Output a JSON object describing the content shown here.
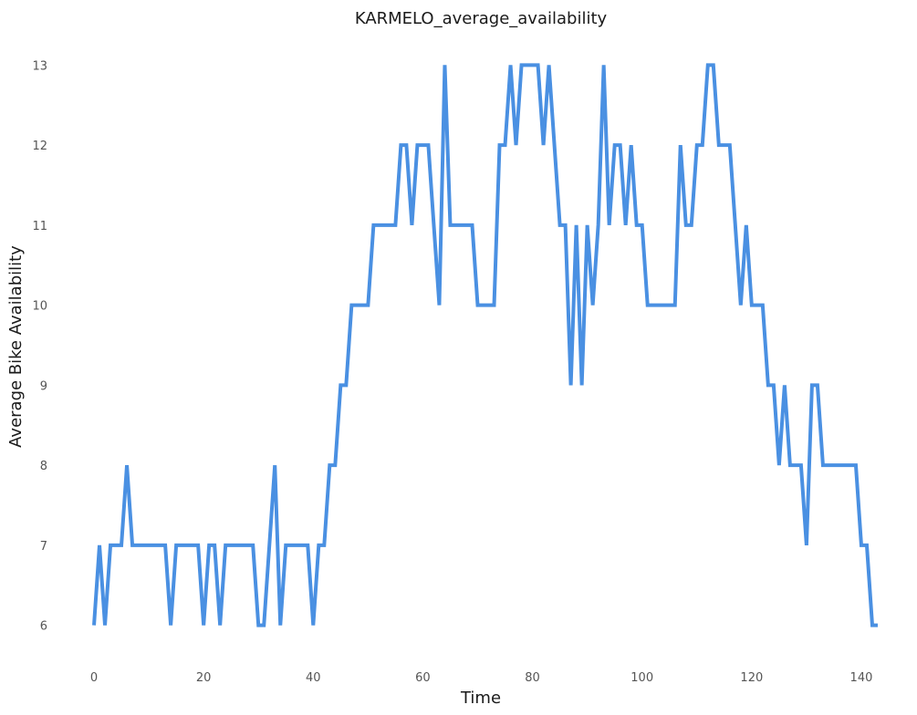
{
  "chart_data": {
    "type": "line",
    "title": "KARMELO_average_availability",
    "xlabel": "Time",
    "ylabel": "Average Bike Availability",
    "xlim": [
      -3,
      144
    ],
    "ylim": [
      5.7,
      13.3
    ],
    "xticks": [
      0,
      20,
      40,
      60,
      80,
      100,
      120,
      140
    ],
    "yticks": [
      6,
      7,
      8,
      9,
      10,
      11,
      12,
      13
    ],
    "grid": false,
    "legend": "none",
    "line_color": "#4a90e2",
    "series": [
      {
        "x": [
          0,
          1,
          2,
          3,
          4,
          5,
          6,
          7,
          8,
          9,
          10,
          11,
          12,
          13,
          14,
          15,
          16,
          17,
          18,
          19,
          20,
          21,
          22,
          23,
          24,
          25,
          26,
          27,
          28,
          29,
          30,
          31,
          32,
          33,
          34,
          35,
          36,
          37,
          38,
          39,
          40,
          41,
          42,
          43,
          44,
          45,
          46,
          47,
          48,
          49,
          50,
          51,
          52,
          53,
          54,
          55,
          56,
          57,
          58,
          59,
          60,
          61,
          62,
          63,
          64,
          65,
          66,
          67,
          68,
          69,
          70,
          71,
          72,
          73,
          74,
          75,
          76,
          77,
          78,
          79,
          80,
          81,
          82,
          83,
          84,
          85,
          86,
          87,
          88,
          89,
          90,
          91,
          92,
          93,
          94,
          95,
          96,
          97,
          98,
          99,
          100,
          101,
          102,
          103,
          104,
          105,
          106,
          107,
          108,
          109,
          110,
          111,
          112,
          113,
          114,
          115,
          116,
          117,
          118,
          119,
          120,
          121,
          122,
          123,
          124,
          125,
          126,
          127,
          128,
          129,
          130,
          131,
          132,
          133,
          134,
          135,
          136,
          137,
          138,
          139,
          140,
          141,
          142,
          143
        ],
        "values": [
          6,
          7,
          6,
          7,
          7,
          7,
          8,
          7,
          7,
          7,
          7,
          7,
          7,
          7,
          6,
          7,
          7,
          7,
          7,
          7,
          6,
          7,
          7,
          6,
          7,
          7,
          7,
          7,
          7,
          7,
          6,
          6,
          7,
          8,
          6,
          7,
          7,
          7,
          7,
          7,
          6,
          7,
          7,
          8,
          8,
          9,
          9,
          10,
          10,
          10,
          10,
          11,
          11,
          11,
          11,
          11,
          12,
          12,
          11,
          12,
          12,
          12,
          11,
          10,
          13,
          11,
          11,
          11,
          11,
          11,
          10,
          10,
          10,
          10,
          12,
          12,
          13,
          12,
          13,
          13,
          13,
          13,
          12,
          13,
          12,
          11,
          11,
          9,
          11,
          9,
          11,
          10,
          11,
          13,
          11,
          12,
          12,
          11,
          12,
          11,
          11,
          10,
          10,
          10,
          10,
          10,
          10,
          12,
          11,
          11,
          12,
          12,
          13,
          13,
          12,
          12,
          12,
          11,
          10,
          11,
          10,
          10,
          10,
          9,
          9,
          8,
          9,
          8,
          8,
          8,
          7,
          9,
          9,
          8,
          8,
          8,
          8,
          8,
          8,
          8,
          7,
          7,
          6,
          6
        ]
      }
    ]
  }
}
